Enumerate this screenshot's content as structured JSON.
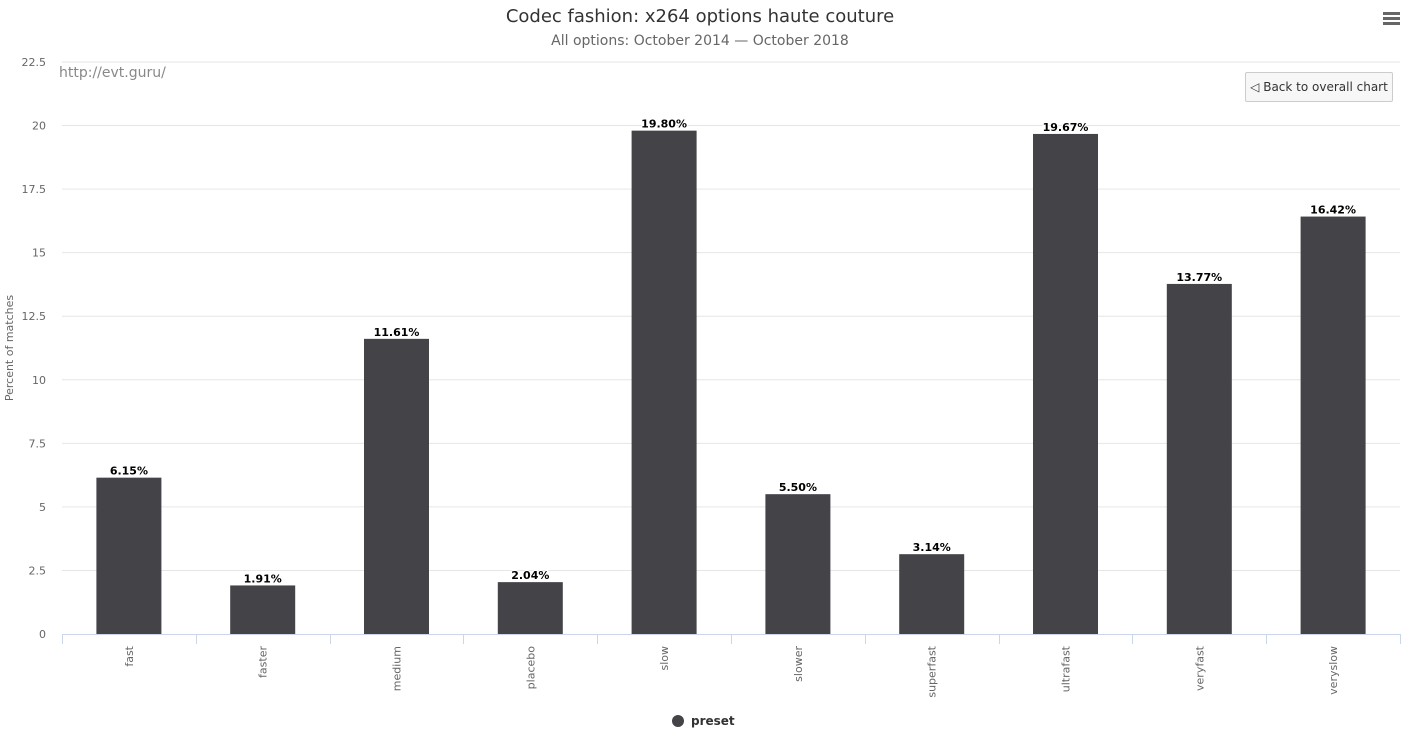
{
  "chart_data": {
    "type": "bar",
    "title": "Codec fashion: x264 options haute couture",
    "subtitle": "All options: October 2014 — October 2018",
    "credit": "http://evt.guru/",
    "xlabel": "",
    "ylabel": "Percent of matches",
    "ylim": [
      0,
      22.5
    ],
    "yticks": [
      "0",
      "2.5",
      "5",
      "7.5",
      "10",
      "12.5",
      "15",
      "17.5",
      "20",
      "22.5"
    ],
    "grid": true,
    "legend_position": "bottom",
    "categories": [
      "fast",
      "faster",
      "medium",
      "placebo",
      "slow",
      "slower",
      "superfast",
      "ultrafast",
      "veryfast",
      "veryslow"
    ],
    "series": [
      {
        "name": "preset",
        "color": "#434348",
        "values": [
          6.15,
          1.91,
          11.61,
          2.04,
          19.8,
          5.5,
          3.14,
          19.67,
          13.77,
          16.42
        ],
        "labels": [
          "6.15%",
          "1.91%",
          "11.61%",
          "2.04%",
          "19.80%",
          "5.50%",
          "3.14%",
          "19.67%",
          "13.77%",
          "16.42%"
        ]
      }
    ]
  },
  "ui": {
    "back_button": "◁ Back to overall chart",
    "menu_icon": "hamburger-menu-icon"
  }
}
